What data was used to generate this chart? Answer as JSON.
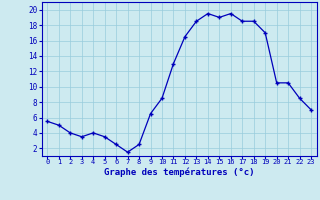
{
  "hours": [
    0,
    1,
    2,
    3,
    4,
    5,
    6,
    7,
    8,
    9,
    10,
    11,
    12,
    13,
    14,
    15,
    16,
    17,
    18,
    19,
    20,
    21,
    22,
    23
  ],
  "temps": [
    5.5,
    5.0,
    4.0,
    3.5,
    4.0,
    3.5,
    2.5,
    1.5,
    2.5,
    6.5,
    8.5,
    13.0,
    16.5,
    18.5,
    19.5,
    19.0,
    19.5,
    18.5,
    18.5,
    17.0,
    10.5,
    10.5,
    8.5,
    7.0
  ],
  "line_color": "#0000bb",
  "marker": "P",
  "marker_size": 2.5,
  "bg_color": "#cdeaf0",
  "grid_color": "#99ccdd",
  "xlabel": "Graphe des températures (°c)",
  "xlabel_color": "#0000bb",
  "ylabel_ticks": [
    2,
    4,
    6,
    8,
    10,
    12,
    14,
    16,
    18,
    20
  ],
  "xlim": [
    -0.5,
    23.5
  ],
  "ylim": [
    1.0,
    21.0
  ],
  "tick_label_color": "#0000bb",
  "axis_border_color": "#0000bb",
  "tick_fontsize": 5.0,
  "xlabel_fontsize": 6.5,
  "ytick_fontsize": 5.5
}
